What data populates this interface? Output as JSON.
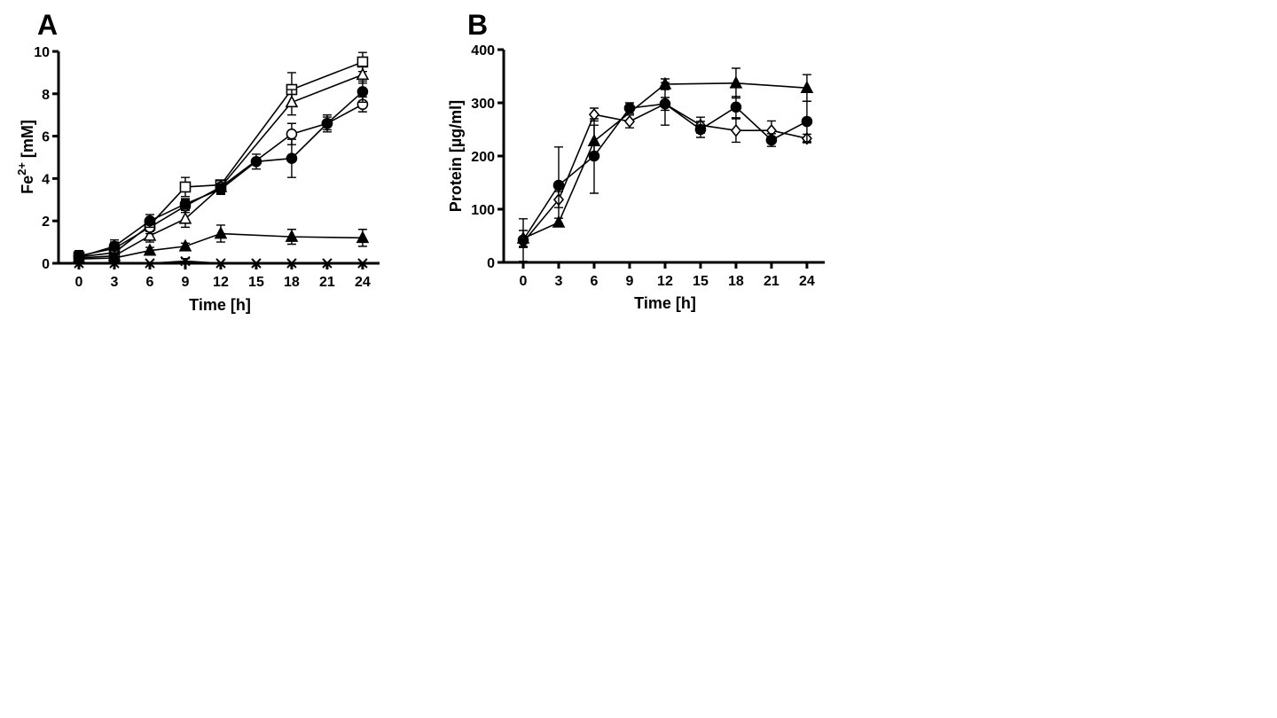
{
  "chart_data": [
    {
      "type": "line",
      "panel_label": "A",
      "xlabel": "Time [h]",
      "ylabel": {
        "base": "Fe",
        "superscript": "2+",
        "unit": " [mM]"
      },
      "xlim": [
        -2,
        26.5
      ],
      "ylim": [
        0,
        10
      ],
      "x_ticks": [
        0,
        3,
        6,
        9,
        12,
        15,
        18,
        21,
        24
      ],
      "y_ticks": [
        0,
        2,
        4,
        6,
        8,
        10
      ],
      "grid": false,
      "legend": "none",
      "series": [
        {
          "marker": "open-square",
          "x": [
            0,
            3,
            6,
            9,
            12,
            18,
            24
          ],
          "y": [
            0.3,
            0.5,
            1.8,
            3.6,
            3.7,
            8.2,
            9.5
          ],
          "err": [
            0.25,
            0.2,
            0.3,
            0.45,
            0.2,
            0.8,
            0.45
          ]
        },
        {
          "marker": "open-triangle",
          "x": [
            0,
            3,
            6,
            9,
            12,
            18,
            24
          ],
          "y": [
            0.25,
            0.35,
            1.3,
            2.1,
            3.6,
            7.6,
            8.9
          ],
          "err": [
            0.2,
            0.2,
            0.3,
            0.4,
            0.3,
            0.6,
            0.4
          ]
        },
        {
          "marker": "open-circle",
          "x": [
            0,
            3,
            6,
            9,
            12,
            18,
            21,
            24
          ],
          "y": [
            0.35,
            0.7,
            1.7,
            2.7,
            3.6,
            6.1,
            6.6,
            7.5
          ],
          "err": [
            0.25,
            0.3,
            0.3,
            0.3,
            0.3,
            0.5,
            0.4,
            0.35
          ]
        },
        {
          "marker": "filled-circle",
          "x": [
            0,
            3,
            6,
            9,
            12,
            15,
            18,
            21,
            24
          ],
          "y": [
            0.3,
            0.8,
            2.0,
            2.8,
            3.5,
            4.8,
            4.95,
            6.6,
            8.1
          ],
          "err": [
            0.2,
            0.3,
            0.3,
            0.25,
            0.25,
            0.35,
            0.9,
            0.3,
            0.5
          ]
        },
        {
          "marker": "filled-triangle",
          "x": [
            0,
            3,
            6,
            9,
            12,
            18,
            24
          ],
          "y": [
            0.2,
            0.25,
            0.6,
            0.8,
            1.4,
            1.25,
            1.2
          ],
          "err": [
            0.2,
            0.2,
            0.15,
            0.15,
            0.4,
            0.35,
            0.4
          ]
        },
        {
          "marker": "cross",
          "x": [
            0,
            3,
            6,
            9,
            12,
            15,
            18,
            21,
            24
          ],
          "y": [
            0,
            0,
            0,
            0.1,
            0,
            0,
            0,
            0,
            0
          ],
          "err": [
            0,
            0,
            0,
            0.12,
            0,
            0,
            0,
            0,
            0
          ]
        }
      ]
    },
    {
      "type": "line",
      "panel_label": "B",
      "xlabel": "Time [h]",
      "ylabel": {
        "base": "Protein [µg/ml]",
        "superscript": "",
        "unit": ""
      },
      "xlim": [
        -2,
        26.5
      ],
      "ylim": [
        0,
        400
      ],
      "x_ticks": [
        0,
        3,
        6,
        9,
        12,
        15,
        18,
        21,
        24
      ],
      "y_ticks": [
        0,
        100,
        200,
        300,
        400
      ],
      "grid": false,
      "legend": "none",
      "series": [
        {
          "marker": "filled-triangle",
          "x": [
            0,
            3,
            6,
            12,
            18,
            24
          ],
          "y": [
            45,
            75,
            228,
            335,
            337,
            328
          ],
          "err": [
            15,
            8,
            30,
            10,
            28,
            25
          ]
        },
        {
          "marker": "open-diamond",
          "x": [
            0,
            3,
            6,
            9,
            12,
            15,
            18,
            21,
            24
          ],
          "y": [
            38,
            118,
            278,
            265,
            298,
            258,
            248,
            248,
            233
          ],
          "err": [
            10,
            15,
            12,
            12,
            12,
            15,
            22,
            18,
            8
          ]
        },
        {
          "marker": "filled-circle",
          "x": [
            0,
            3,
            6,
            9,
            12,
            15,
            18,
            21,
            24
          ],
          "y": [
            42,
            145,
            200,
            290,
            298,
            250,
            292,
            230,
            265
          ],
          "err": [
            40,
            72,
            70,
            10,
            40,
            15,
            20,
            12,
            38
          ]
        }
      ]
    }
  ]
}
